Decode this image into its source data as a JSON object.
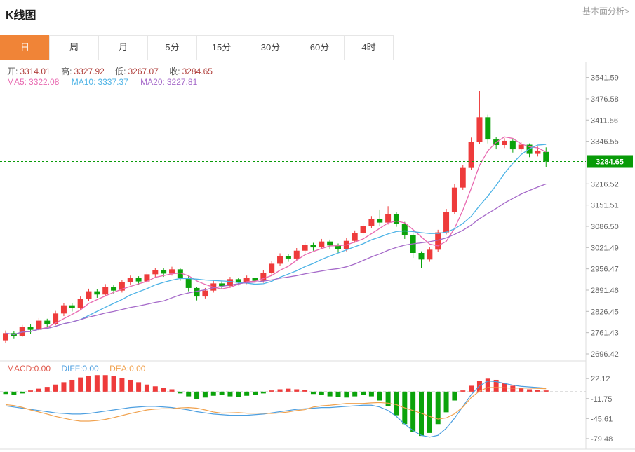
{
  "header": {
    "title": "K线图",
    "link_label": "基本面分析>"
  },
  "tabs": {
    "items": [
      "日",
      "周",
      "月",
      "5分",
      "15分",
      "30分",
      "60分",
      "4时"
    ],
    "active_index": 0,
    "active_label": "日"
  },
  "ohlc": {
    "open_label": "开:",
    "open": "3314.01",
    "high_label": "高:",
    "high": "3327.92",
    "low_label": "低:",
    "low": "3267.07",
    "close_label": "收:",
    "close": "3284.65"
  },
  "ma": {
    "ma5_label": "MA5:",
    "ma5": "3322.08",
    "ma10_label": "MA10:",
    "ma10": "3337.37",
    "ma20_label": "MA20:",
    "ma20": "3227.81"
  },
  "macd_legend": {
    "macd_label": "MACD:",
    "macd": "0.00",
    "diff_label": "DIFF:",
    "diff": "0.00",
    "dea_label": "DEA:",
    "dea": "0.00"
  },
  "colors": {
    "accent": "#f08437",
    "up": "#ee3b3b",
    "down": "#0ba30b",
    "ma5": "#e868b0",
    "ma10": "#4db3e6",
    "ma20": "#a569c9",
    "diff": "#4d9fe0",
    "dea": "#f0a14d",
    "price_tag": "#089b08",
    "axis_text": "#666666",
    "axis_line": "#dddddd"
  },
  "chart_data": {
    "type": "candlestick+macd",
    "title": "K线图",
    "period_selected": "日",
    "current_price": "3284.65",
    "y_axis": {
      "range": [
        2675,
        3590
      ],
      "ticks": [
        "3541.59",
        "3476.58",
        "3411.56",
        "3346.55",
        "3216.52",
        "3151.51",
        "3086.50",
        "3021.49",
        "2956.47",
        "2891.46",
        "2826.45",
        "2761.43",
        "2696.42"
      ]
    },
    "ma_periods": [
      5,
      10,
      20
    ],
    "candles": [
      [
        2738,
        2760,
        2730,
        2768
      ],
      [
        2760,
        2752,
        2742,
        2766
      ],
      [
        2752,
        2778,
        2748,
        2785
      ],
      [
        2778,
        2770,
        2758,
        2788
      ],
      [
        2770,
        2798,
        2765,
        2806
      ],
      [
        2798,
        2788,
        2776,
        2804
      ],
      [
        2788,
        2820,
        2784,
        2828
      ],
      [
        2820,
        2845,
        2812,
        2852
      ],
      [
        2845,
        2836,
        2826,
        2852
      ],
      [
        2836,
        2865,
        2830,
        2872
      ],
      [
        2865,
        2888,
        2858,
        2896
      ],
      [
        2888,
        2878,
        2868,
        2894
      ],
      [
        2878,
        2902,
        2872,
        2910
      ],
      [
        2902,
        2890,
        2880,
        2908
      ],
      [
        2890,
        2915,
        2884,
        2922
      ],
      [
        2915,
        2928,
        2906,
        2936
      ],
      [
        2928,
        2918,
        2908,
        2934
      ],
      [
        2918,
        2940,
        2912,
        2948
      ],
      [
        2940,
        2952,
        2930,
        2960
      ],
      [
        2952,
        2942,
        2932,
        2958
      ],
      [
        2942,
        2955,
        2936,
        2963
      ],
      [
        2955,
        2930,
        2920,
        2958
      ],
      [
        2930,
        2898,
        2888,
        2934
      ],
      [
        2898,
        2872,
        2860,
        2902
      ],
      [
        2872,
        2890,
        2866,
        2898
      ],
      [
        2890,
        2912,
        2884,
        2920
      ],
      [
        2912,
        2904,
        2894,
        2918
      ],
      [
        2904,
        2925,
        2898,
        2932
      ],
      [
        2925,
        2916,
        2906,
        2930
      ],
      [
        2916,
        2928,
        2910,
        2936
      ],
      [
        2928,
        2920,
        2912,
        2934
      ],
      [
        2920,
        2945,
        2914,
        2952
      ],
      [
        2945,
        2972,
        2938,
        2980
      ],
      [
        2972,
        2996,
        2966,
        3004
      ],
      [
        2996,
        2988,
        2978,
        3002
      ],
      [
        2988,
        3012,
        2982,
        3020
      ],
      [
        3012,
        3030,
        3004,
        3038
      ],
      [
        3030,
        3022,
        3012,
        3036
      ],
      [
        3022,
        3040,
        3016,
        3048
      ],
      [
        3040,
        3028,
        3018,
        3046
      ],
      [
        3028,
        3016,
        3006,
        3034
      ],
      [
        3016,
        3042,
        3010,
        3050
      ],
      [
        3042,
        3066,
        3036,
        3074
      ],
      [
        3066,
        3088,
        3060,
        3096
      ],
      [
        3088,
        3108,
        3082,
        3118
      ],
      [
        3108,
        3098,
        3088,
        3138
      ],
      [
        3098,
        3125,
        3092,
        3148
      ],
      [
        3125,
        3095,
        3085,
        3130
      ],
      [
        3095,
        3060,
        3048,
        3100
      ],
      [
        3060,
        3005,
        2990,
        3065
      ],
      [
        3005,
        2985,
        2958,
        3010
      ],
      [
        2985,
        3015,
        2978,
        3022
      ],
      [
        3015,
        3068,
        3008,
        3076
      ],
      [
        3068,
        3130,
        3062,
        3140
      ],
      [
        3130,
        3205,
        3124,
        3215
      ],
      [
        3205,
        3265,
        3198,
        3275
      ],
      [
        3265,
        3345,
        3258,
        3358
      ],
      [
        3345,
        3420,
        3338,
        3500
      ],
      [
        3420,
        3352,
        3340,
        3428
      ],
      [
        3352,
        3335,
        3322,
        3360
      ],
      [
        3335,
        3348,
        3326,
        3356
      ],
      [
        3348,
        3322,
        3312,
        3352
      ],
      [
        3322,
        3336,
        3314,
        3344
      ],
      [
        3336,
        3308,
        3298,
        3340
      ],
      [
        3308,
        3318,
        3300,
        3330
      ],
      [
        3314.01,
        3284.65,
        3267.07,
        3327.92
      ]
    ],
    "macd": {
      "range": [
        -97.4,
        52
      ],
      "y_ticks": [
        "22.12",
        "-11.75",
        "-45.61",
        "-79.48"
      ],
      "hist": [
        -4,
        -5,
        -3,
        2,
        5,
        8,
        12,
        16,
        20,
        24,
        26,
        28,
        28,
        26,
        23,
        20,
        16,
        12,
        9,
        6,
        4,
        -3,
        -8,
        -12,
        -10,
        -7,
        -5,
        -8,
        -9,
        -7,
        -5,
        -3,
        2,
        4,
        5,
        4,
        3,
        -4,
        -6,
        -8,
        -9,
        -10,
        -8,
        -6,
        -8,
        -15,
        -25,
        -40,
        -55,
        -68,
        -75,
        -70,
        -55,
        -35,
        -15,
        2,
        10,
        18,
        22,
        20,
        15,
        10,
        6,
        4,
        3,
        2
      ],
      "diff": [
        -24,
        -26,
        -28,
        -30,
        -32,
        -34,
        -36,
        -37,
        -38,
        -38,
        -37,
        -35,
        -33,
        -31,
        -29,
        -27,
        -26,
        -25,
        -25,
        -26,
        -27,
        -29,
        -31,
        -34,
        -36,
        -38,
        -39,
        -40,
        -40,
        -40,
        -39,
        -38,
        -36,
        -34,
        -32,
        -30,
        -29,
        -28,
        -27,
        -27,
        -26,
        -25,
        -24,
        -23,
        -23,
        -26,
        -32,
        -42,
        -55,
        -66,
        -74,
        -77,
        -74,
        -62,
        -45,
        -25,
        -5,
        10,
        18,
        17,
        14,
        11,
        9,
        8,
        7,
        6
      ]
    }
  }
}
